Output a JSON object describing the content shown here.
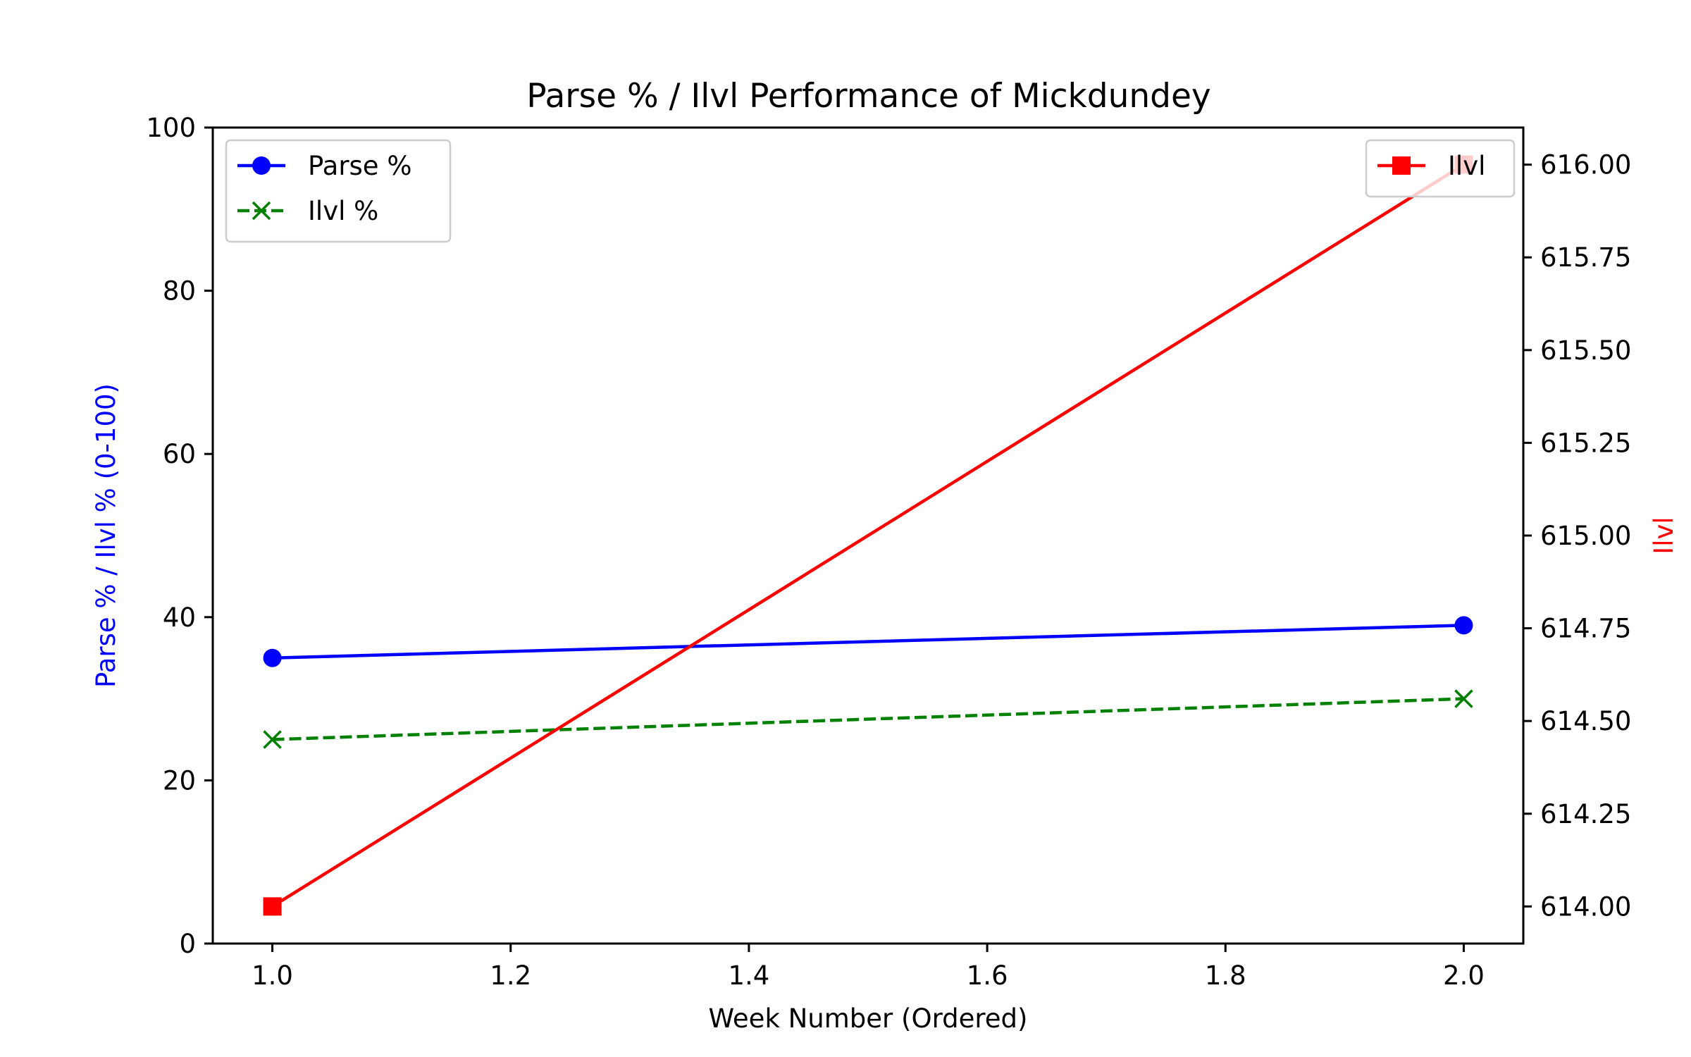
{
  "chart_data": {
    "type": "line",
    "title": "Parse % / Ilvl Performance of Mickdundey",
    "xlabel": "Week Number (Ordered)",
    "ylabel_left": "Parse % / Ilvl % (0-100)",
    "ylabel_right": "Ilvl",
    "x": [
      1.0,
      2.0
    ],
    "xlim": [
      0.95,
      2.05
    ],
    "xticks": [
      "1.0",
      "1.2",
      "1.4",
      "1.6",
      "1.8",
      "2.0"
    ],
    "ylim_left": [
      0,
      100
    ],
    "yticks_left": [
      "0",
      "20",
      "40",
      "60",
      "80",
      "100"
    ],
    "ylim_right": [
      613.9,
      616.1
    ],
    "yticks_right": [
      "614.00",
      "614.25",
      "614.50",
      "614.75",
      "615.00",
      "615.25",
      "615.50",
      "615.75",
      "616.00"
    ],
    "grid": false,
    "series": [
      {
        "name": "Parse %",
        "axis": "left",
        "values": [
          35,
          39
        ],
        "color": "#0000ff",
        "marker": "circle",
        "linestyle": "solid"
      },
      {
        "name": "Ilvl %",
        "axis": "left",
        "values": [
          25,
          30
        ],
        "color": "#008000",
        "marker": "x",
        "linestyle": "dashed"
      },
      {
        "name": "Ilvl",
        "axis": "right",
        "values": [
          614.0,
          616.0
        ],
        "color": "#ff0000",
        "marker": "square",
        "linestyle": "solid"
      }
    ],
    "legend_left_placement": "upper-left",
    "legend_right_placement": "upper-right"
  }
}
